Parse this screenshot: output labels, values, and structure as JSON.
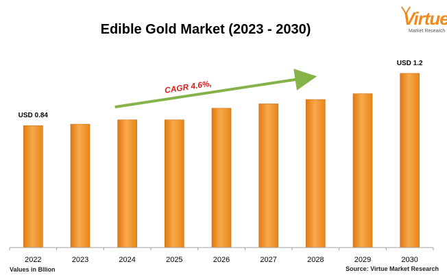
{
  "chart_data": {
    "type": "bar",
    "title": "Edible Gold Market (2023 - 2030)",
    "categories": [
      "2022",
      "2023",
      "2024",
      "2025",
      "2026",
      "2027",
      "2028",
      "2029",
      "2030"
    ],
    "values": [
      0.84,
      0.85,
      0.88,
      0.88,
      0.96,
      0.99,
      1.02,
      1.06,
      1.2
    ],
    "ylim": [
      0,
      1.2
    ],
    "grid": false,
    "data_labels": [
      {
        "category": "2022",
        "text": "USD 0.84"
      },
      {
        "category": "2030",
        "text": "USD 1.2"
      }
    ],
    "annotation": {
      "text": "CAGR 4.6%,",
      "arrow_from": "2024",
      "arrow_to": "2028"
    },
    "bar_color": "#f29a2e"
  },
  "notes": {
    "unit": "Values in Bllion",
    "source": "Source: Virtue Market Research"
  },
  "logo": {
    "word": "Virtue",
    "sub": "Market Research"
  },
  "colors": {
    "arrow": "#86b24a",
    "cagr_text": "#d62020",
    "axis": "#a0a0a0"
  }
}
